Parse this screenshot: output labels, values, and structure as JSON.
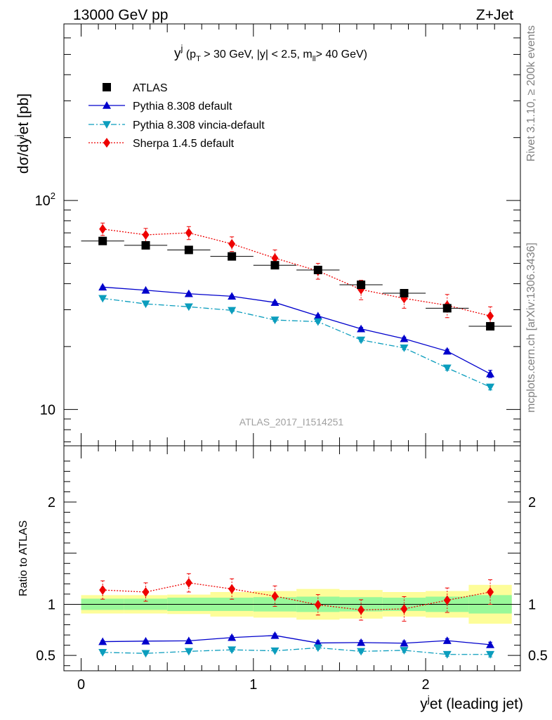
{
  "header": {
    "left": "13000 GeV pp",
    "right": "Z+Jet",
    "side_top": "Rivet 3.1.10, ≥ 200k events",
    "side_bottom": "mcplots.cern.ch [arXiv:1306.3436]",
    "watermark": "ATLAS_2017_I1514251"
  },
  "chart_data": [
    {
      "type": "scatter",
      "title": "y^j (p_T > 30 GeV, |y| < 2.5, m_ll > 40 GeV)",
      "xlabel": "y^jet (leading jet)",
      "ylabel": "dσ/dy^jet [pb]",
      "yscale": "log",
      "xlim": [
        -0.1,
        2.55
      ],
      "ylim": [
        6.7,
        700
      ],
      "x": [
        0.125,
        0.375,
        0.625,
        0.875,
        1.125,
        1.375,
        1.625,
        1.875,
        2.125,
        2.375
      ],
      "xerr": 0.125,
      "y_tick_labels": [
        "10",
        "10^2"
      ],
      "legend_position": "top-left",
      "series": [
        {
          "name": "ATLAS",
          "color": "#000000",
          "marker": "square",
          "values": [
            64,
            61,
            58,
            54,
            49,
            46.5,
            39.5,
            36,
            30.5,
            25
          ],
          "err": [
            1.5,
            1.5,
            1.5,
            1.5,
            1.5,
            1.5,
            1.2,
            1.2,
            1.2,
            1
          ]
        },
        {
          "name": "Pythia 8.308 default",
          "color": "#0000cc",
          "marker": "triangle-up",
          "line": "solid",
          "values": [
            38.5,
            37.2,
            35.8,
            34.8,
            32.5,
            28,
            24.3,
            21.8,
            19,
            14.8
          ],
          "err": [
            0.4,
            0.4,
            0.4,
            0.4,
            0.4,
            0.4,
            0.4,
            0.4,
            0.4,
            0.6
          ]
        },
        {
          "name": "Pythia 8.308 vincia-default",
          "color": "#0b9dbd",
          "marker": "triangle-down",
          "line": "dashdot",
          "values": [
            34,
            32,
            31,
            29.8,
            26.8,
            26.3,
            21.5,
            19.7,
            15.8,
            12.8
          ],
          "err": [
            0.4,
            0.4,
            0.4,
            0.4,
            0.4,
            0.4,
            0.4,
            0.4,
            0.4,
            0.4
          ]
        },
        {
          "name": "Sherpa 1.4.5 default",
          "color": "#ee0000",
          "marker": "diamond",
          "line": "dotted",
          "values": [
            73,
            68.5,
            70,
            62,
            53,
            46,
            37.5,
            34,
            31.5,
            28
          ],
          "err": [
            5,
            5,
            5,
            5,
            5,
            4,
            4,
            3.5,
            4,
            3
          ]
        }
      ]
    },
    {
      "type": "scatter",
      "ylabel": "Ratio to ATLAS",
      "xlabel": "y^jet (leading jet)",
      "xlim": [
        -0.1,
        2.55
      ],
      "ylim": [
        0.35,
        2.55
      ],
      "x_tick_labels": [
        "0",
        "1",
        "2"
      ],
      "y_tick_labels": [
        "0.5",
        "1",
        "2"
      ],
      "x": [
        0.125,
        0.375,
        0.625,
        0.875,
        1.125,
        1.375,
        1.625,
        1.875,
        2.125,
        2.375
      ],
      "xerr": 0.125,
      "bands": {
        "stat": {
          "color": "#99f899",
          "half_width": [
            0.055,
            0.055,
            0.065,
            0.065,
            0.07,
            0.075,
            0.07,
            0.065,
            0.075,
            0.09
          ]
        },
        "total": {
          "color": "#fdfd99",
          "half_width": [
            0.09,
            0.09,
            0.095,
            0.12,
            0.13,
            0.15,
            0.14,
            0.12,
            0.13,
            0.19
          ]
        }
      },
      "series": [
        {
          "name": "Pythia 8.308 default",
          "color": "#0000cc",
          "marker": "triangle-up",
          "line": "solid",
          "values": [
            0.635,
            0.64,
            0.643,
            0.675,
            0.695,
            0.622,
            0.626,
            0.62,
            0.645,
            0.605
          ],
          "err": [
            0.01,
            0.01,
            0.01,
            0.015,
            0.015,
            0.02,
            0.02,
            0.02,
            0.02,
            0.025
          ]
        },
        {
          "name": "Pythia 8.308 vincia-default",
          "color": "#0b9dbd",
          "marker": "triangle-down",
          "line": "dashdot",
          "values": [
            0.53,
            0.52,
            0.54,
            0.555,
            0.545,
            0.575,
            0.54,
            0.55,
            0.51,
            0.51
          ],
          "err": [
            0.01,
            0.01,
            0.01,
            0.015,
            0.01,
            0.015,
            0.015,
            0.02,
            0.02,
            0.025
          ]
        },
        {
          "name": "Sherpa 1.4.5 default",
          "color": "#ee0000",
          "marker": "diamond",
          "line": "dotted",
          "values": [
            1.14,
            1.12,
            1.21,
            1.15,
            1.08,
            0.995,
            0.945,
            0.955,
            1.04,
            1.12
          ],
          "err": [
            0.09,
            0.09,
            0.09,
            0.1,
            0.1,
            0.1,
            0.1,
            0.12,
            0.12,
            0.12
          ]
        }
      ]
    }
  ]
}
